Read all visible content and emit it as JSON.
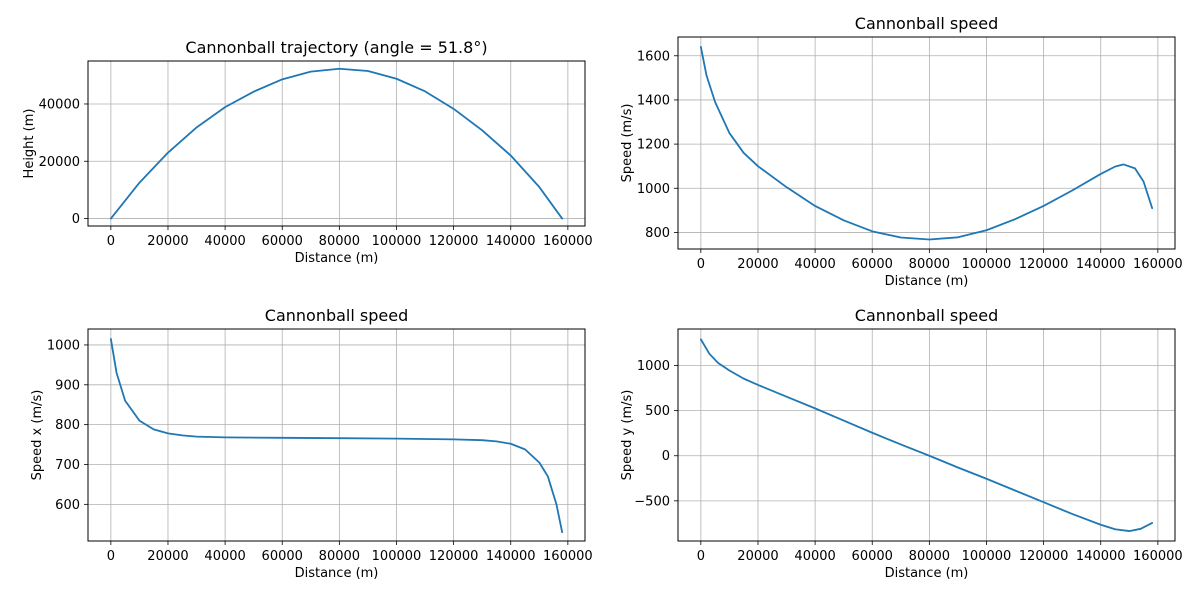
{
  "chart_data": [
    {
      "type": "line",
      "title": "Cannonball trajectory (angle = 51.8°)",
      "xlabel": "Distance (m)",
      "ylabel": "Height (m)",
      "xlim": [
        -8000,
        166000
      ],
      "ylim": [
        -2600,
        55000
      ],
      "xticks": [
        0,
        20000,
        40000,
        60000,
        80000,
        100000,
        120000,
        140000,
        160000
      ],
      "yticks": [
        0,
        20000,
        40000
      ],
      "grid": true,
      "color": "#1f77b4",
      "series": [
        {
          "x": [
            0,
            10000,
            20000,
            30000,
            40000,
            50000,
            60000,
            70000,
            80000,
            90000,
            100000,
            110000,
            120000,
            130000,
            140000,
            150000,
            158000
          ],
          "y": [
            0,
            12500,
            23000,
            31800,
            38900,
            44300,
            48600,
            51300,
            52300,
            51500,
            48800,
            44400,
            38300,
            30800,
            22000,
            11000,
            0
          ]
        }
      ]
    },
    {
      "type": "line",
      "title": "Cannonball speed",
      "xlabel": "Distance (m)",
      "ylabel": "Speed (m/s)",
      "xlim": [
        -8000,
        166000
      ],
      "ylim": [
        725,
        1685
      ],
      "xticks": [
        0,
        20000,
        40000,
        60000,
        80000,
        100000,
        120000,
        140000,
        160000
      ],
      "yticks": [
        800,
        1000,
        1200,
        1400,
        1600
      ],
      "grid": true,
      "color": "#1f77b4",
      "series": [
        {
          "x": [
            0,
            2000,
            5000,
            10000,
            15000,
            20000,
            30000,
            40000,
            50000,
            60000,
            70000,
            80000,
            90000,
            100000,
            110000,
            120000,
            130000,
            140000,
            145000,
            148000,
            152000,
            155000,
            158000
          ],
          "y": [
            1640,
            1510,
            1390,
            1250,
            1160,
            1100,
            1005,
            920,
            855,
            805,
            777,
            768,
            778,
            810,
            860,
            920,
            990,
            1065,
            1098,
            1108,
            1090,
            1030,
            910
          ]
        }
      ]
    },
    {
      "type": "line",
      "title": "Cannonball speed",
      "xlabel": "Distance (m)",
      "ylabel": "Speed x (m/s)",
      "xlim": [
        -8000,
        166000
      ],
      "ylim": [
        508,
        1040
      ],
      "xticks": [
        0,
        20000,
        40000,
        60000,
        80000,
        100000,
        120000,
        140000,
        160000
      ],
      "yticks": [
        600,
        700,
        800,
        900,
        1000
      ],
      "grid": true,
      "color": "#1f77b4",
      "series": [
        {
          "x": [
            0,
            2000,
            5000,
            10000,
            15000,
            20000,
            25000,
            30000,
            40000,
            60000,
            80000,
            100000,
            120000,
            130000,
            135000,
            140000,
            145000,
            150000,
            153000,
            156000,
            158000
          ],
          "y": [
            1015,
            930,
            860,
            810,
            788,
            778,
            773,
            770,
            768,
            767,
            766,
            765,
            763,
            761,
            758,
            752,
            738,
            705,
            670,
            600,
            530
          ]
        }
      ]
    },
    {
      "type": "line",
      "title": "Cannonball speed",
      "xlabel": "Distance (m)",
      "ylabel": "Speed y (m/s)",
      "xlim": [
        -8000,
        166000
      ],
      "ylim": [
        -945,
        1405
      ],
      "xticks": [
        0,
        20000,
        40000,
        60000,
        80000,
        100000,
        120000,
        140000,
        160000
      ],
      "yticks": [
        -500,
        0,
        500,
        1000
      ],
      "grid": true,
      "color": "#1f77b4",
      "series": [
        {
          "x": [
            0,
            3000,
            6000,
            10000,
            15000,
            20000,
            30000,
            40000,
            50000,
            60000,
            70000,
            80000,
            90000,
            100000,
            110000,
            120000,
            130000,
            140000,
            145000,
            150000,
            154000,
            158000
          ],
          "y": [
            1290,
            1130,
            1030,
            945,
            855,
            785,
            655,
            525,
            390,
            255,
            125,
            0,
            -130,
            -255,
            -385,
            -515,
            -645,
            -765,
            -815,
            -835,
            -810,
            -745
          ]
        }
      ]
    }
  ]
}
